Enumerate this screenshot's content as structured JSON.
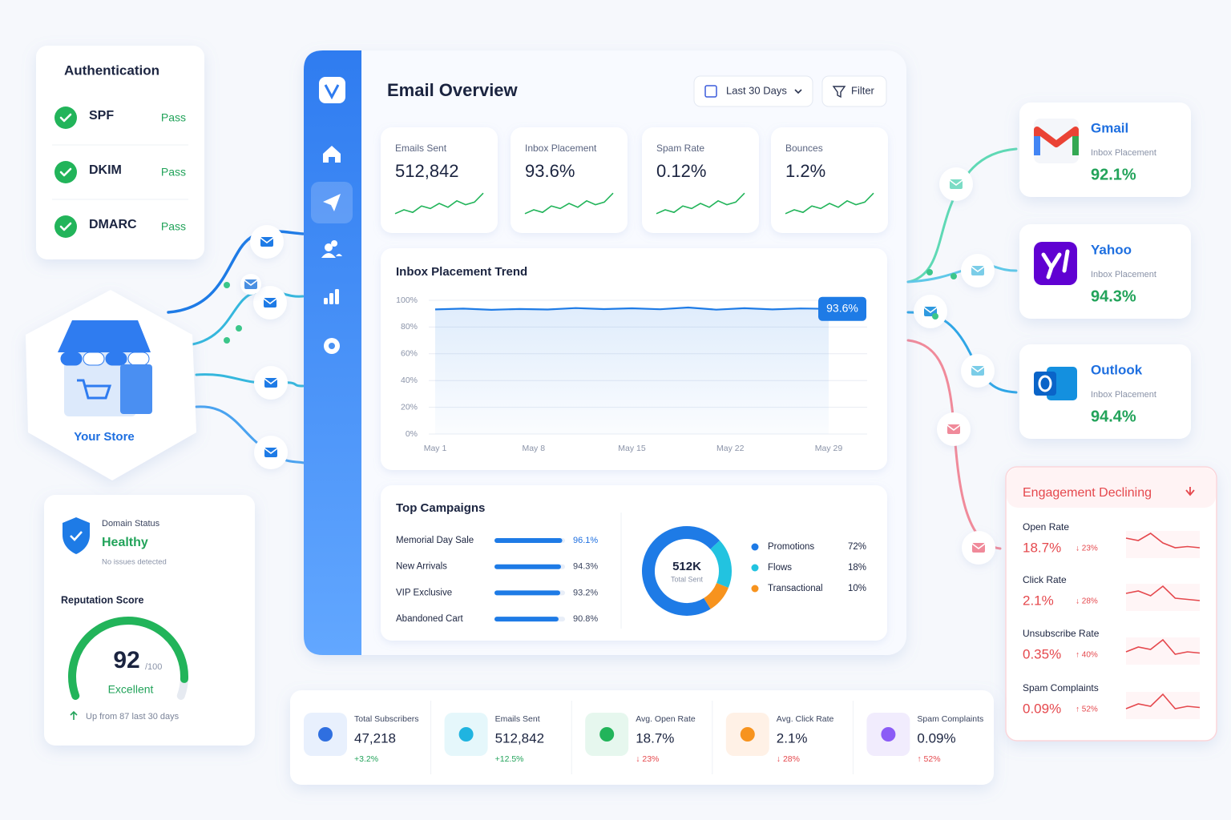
{
  "authentication": {
    "title": "Authentication",
    "checks": [
      {
        "name": "SPF",
        "status": "Pass"
      },
      {
        "name": "DKIM",
        "status": "Pass"
      },
      {
        "name": "DMARC",
        "status": "Pass"
      }
    ]
  },
  "store": {
    "label": "Your Store"
  },
  "domain": {
    "label": "Domain Status",
    "status": "Healthy",
    "note": "No issues detected"
  },
  "reputation": {
    "title": "Reputation Score",
    "score": 92,
    "out_of": {
      "value": 100,
      "label": "/100"
    },
    "rating": "Excellent",
    "change": "Up from 87 last 30 days"
  },
  "header": {
    "title": "Email Overview",
    "date_range": "Last 30 Days",
    "filter": "Filter"
  },
  "kpis": [
    {
      "label": "Emails Sent",
      "value": "512,842"
    },
    {
      "label": "Inbox Placement",
      "value": "93.6%"
    },
    {
      "label": "Spam Rate",
      "value": "0.12%"
    },
    {
      "label": "Bounces",
      "value": "1.2%"
    }
  ],
  "trend": {
    "title": "Inbox Placement Trend",
    "x": [
      1,
      3,
      5,
      7,
      9,
      11,
      13,
      15,
      17,
      19,
      21,
      23,
      25,
      27,
      29
    ],
    "values": [
      93.2,
      93.8,
      92.9,
      93.5,
      93.1,
      94.2,
      93.4,
      94.0,
      93.3,
      94.6,
      93.0,
      94.1,
      93.2,
      93.9,
      93.6
    ],
    "end_label": "93.6%",
    "color": "#1e7be6",
    "xlim": [
      1,
      29
    ],
    "xticks": [
      {
        "value": 1,
        "label": "May 1"
      },
      {
        "value": 8,
        "label": "May 8"
      },
      {
        "value": 15,
        "label": "May 15"
      },
      {
        "value": 22,
        "label": "May 22"
      },
      {
        "value": 29,
        "label": "May 29"
      }
    ],
    "ylim": [
      0,
      100
    ],
    "yticks": [
      {
        "value": 0,
        "label": "0%"
      },
      {
        "value": 20,
        "label": "20%"
      },
      {
        "value": 40,
        "label": "40%"
      },
      {
        "value": 60,
        "label": "60%"
      },
      {
        "value": 80,
        "label": "80%"
      },
      {
        "value": 100,
        "label": "100%"
      }
    ],
    "grid": true
  },
  "campaigns": {
    "title": "Top Campaigns",
    "categories": [
      "Memorial Day Sale",
      "New Arrivals",
      "VIP Exclusive",
      "Abandoned Cart"
    ],
    "values": [
      96.1,
      94.3,
      93.2,
      90.8
    ],
    "value_labels": [
      "96.1%",
      "94.3%",
      "93.2%",
      "90.8%"
    ],
    "xlim": [
      0,
      100
    ],
    "color": "#1e7be6"
  },
  "distribution": {
    "center_value": "512K",
    "center_label": "Total Sent",
    "categories": [
      "Promotions",
      "Flows",
      "Transactional"
    ],
    "values": [
      72,
      18,
      10
    ],
    "value_labels": [
      "72%",
      "18%",
      "10%"
    ],
    "colors": [
      "#1e7be6",
      "#22c3e0",
      "#f7931e"
    ]
  },
  "providers": [
    {
      "name": "Gmail",
      "label": "Inbox Placement",
      "value": "92.1%"
    },
    {
      "name": "Yahoo",
      "label": "Inbox Placement",
      "value": "94.3%"
    },
    {
      "name": "Outlook",
      "label": "Inbox Placement",
      "value": "94.4%"
    }
  ],
  "engagement": {
    "title": "Engagement Declining",
    "metrics": [
      {
        "name": "Open Rate",
        "value": "18.7%",
        "change": "↓ 23%"
      },
      {
        "name": "Click Rate",
        "value": "2.1%",
        "change": "↓ 28%"
      },
      {
        "name": "Unsubscribe Rate",
        "value": "0.35%",
        "change": "↑ 40%"
      },
      {
        "name": "Spam Complaints",
        "value": "0.09%",
        "change": "↑ 52%"
      }
    ]
  },
  "summary": [
    {
      "label": "Total Subscribers",
      "value": "47,218",
      "change": "+3.2%",
      "color": "#22a35a"
    },
    {
      "label": "Emails Sent",
      "value": "512,842",
      "change": "+12.5%",
      "color": "#22a35a"
    },
    {
      "label": "Avg. Open Rate",
      "value": "18.7%",
      "change": "↓ 23%",
      "color": "#e5484d"
    },
    {
      "label": "Avg. Click Rate",
      "value": "2.1%",
      "change": "↓ 28%",
      "color": "#e5484d"
    },
    {
      "label": "Spam Complaints",
      "value": "0.09%",
      "change": "↑ 52%",
      "color": "#e5484d"
    }
  ]
}
